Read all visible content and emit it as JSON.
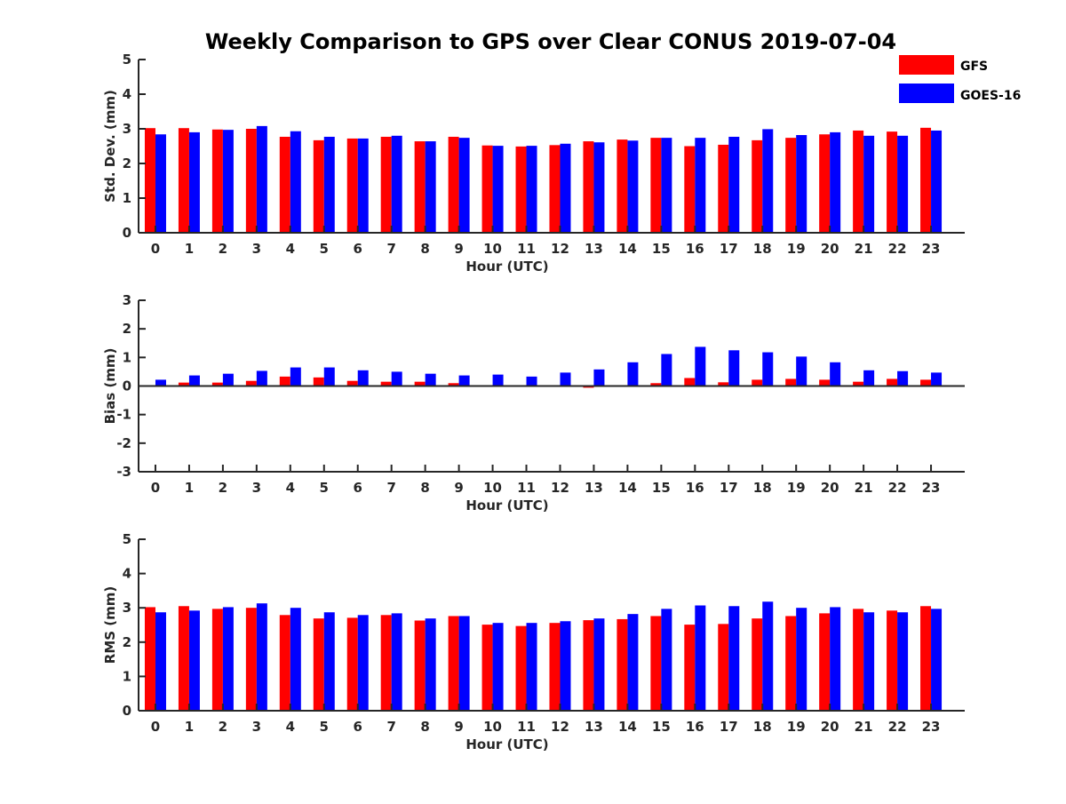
{
  "title": "Weekly Comparison to GPS over Clear CONUS 2019-07-04",
  "colors": {
    "GFS": "#ff0000",
    "GOES-16": "#0000ff",
    "axis": "#262626"
  },
  "legend": {
    "placement": "top-right",
    "items": [
      {
        "name": "GFS"
      },
      {
        "name": "GOES-16"
      }
    ]
  },
  "chart_data": [
    {
      "type": "bar",
      "title": "Weekly Comparison to GPS over Clear CONUS 2019-07-04",
      "xlabel": "Hour (UTC)",
      "ylabel": "Std. Dev. (mm)",
      "ylim": [
        0,
        5
      ],
      "yticks": [
        "0",
        "1",
        "2",
        "3",
        "4",
        "5"
      ],
      "categories": [
        "0",
        "1",
        "2",
        "3",
        "4",
        "5",
        "6",
        "7",
        "8",
        "9",
        "10",
        "11",
        "12",
        "13",
        "14",
        "15",
        "16",
        "17",
        "18",
        "19",
        "20",
        "21",
        "22",
        "23"
      ],
      "series": [
        {
          "name": "GFS",
          "values": [
            3.02,
            3.02,
            2.98,
            3.0,
            2.77,
            2.67,
            2.72,
            2.77,
            2.64,
            2.77,
            2.52,
            2.49,
            2.53,
            2.64,
            2.69,
            2.74,
            2.5,
            2.54,
            2.67,
            2.74,
            2.84,
            2.95,
            2.92,
            3.03
          ]
        },
        {
          "name": "GOES-16",
          "values": [
            2.84,
            2.9,
            2.97,
            3.08,
            2.93,
            2.77,
            2.72,
            2.8,
            2.64,
            2.74,
            2.51,
            2.51,
            2.57,
            2.61,
            2.66,
            2.74,
            2.74,
            2.77,
            2.99,
            2.82,
            2.9,
            2.8,
            2.8,
            2.95
          ]
        }
      ]
    },
    {
      "type": "bar",
      "xlabel": "Hour (UTC)",
      "ylabel": "Bias (mm)",
      "ylim": [
        -3,
        3
      ],
      "yticks": [
        "-3",
        "-2",
        "-1",
        "0",
        "1",
        "2",
        "3"
      ],
      "categories": [
        "0",
        "1",
        "2",
        "3",
        "4",
        "5",
        "6",
        "7",
        "8",
        "9",
        "10",
        "11",
        "12",
        "13",
        "14",
        "15",
        "16",
        "17",
        "18",
        "19",
        "20",
        "21",
        "22",
        "23"
      ],
      "series": [
        {
          "name": "GFS",
          "values": [
            0.02,
            0.12,
            0.12,
            0.18,
            0.33,
            0.3,
            0.18,
            0.15,
            0.15,
            0.1,
            0.03,
            0.0,
            -0.03,
            -0.06,
            -0.03,
            0.1,
            0.28,
            0.13,
            0.22,
            0.25,
            0.22,
            0.15,
            0.25,
            0.22
          ]
        },
        {
          "name": "GOES-16",
          "values": [
            0.22,
            0.37,
            0.43,
            0.53,
            0.65,
            0.65,
            0.55,
            0.5,
            0.43,
            0.37,
            0.4,
            0.33,
            0.47,
            0.58,
            0.83,
            1.12,
            1.37,
            1.25,
            1.18,
            1.03,
            0.83,
            0.55,
            0.52,
            0.47
          ]
        }
      ]
    },
    {
      "type": "bar",
      "xlabel": "Hour (UTC)",
      "ylabel": "RMS (mm)",
      "ylim": [
        0,
        5
      ],
      "yticks": [
        "0",
        "1",
        "2",
        "3",
        "4",
        "5"
      ],
      "categories": [
        "0",
        "1",
        "2",
        "3",
        "4",
        "5",
        "6",
        "7",
        "8",
        "9",
        "10",
        "11",
        "12",
        "13",
        "14",
        "15",
        "16",
        "17",
        "18",
        "19",
        "20",
        "21",
        "22",
        "23"
      ],
      "series": [
        {
          "name": "GFS",
          "values": [
            3.02,
            3.05,
            2.97,
            3.0,
            2.79,
            2.69,
            2.71,
            2.79,
            2.63,
            2.76,
            2.51,
            2.47,
            2.56,
            2.64,
            2.67,
            2.76,
            2.51,
            2.53,
            2.69,
            2.76,
            2.84,
            2.97,
            2.92,
            3.05
          ]
        },
        {
          "name": "GOES-16",
          "values": [
            2.87,
            2.92,
            3.02,
            3.13,
            3.0,
            2.87,
            2.79,
            2.84,
            2.69,
            2.76,
            2.56,
            2.56,
            2.61,
            2.69,
            2.82,
            2.97,
            3.07,
            3.05,
            3.18,
            3.0,
            3.02,
            2.87,
            2.87,
            2.97
          ]
        }
      ]
    }
  ]
}
